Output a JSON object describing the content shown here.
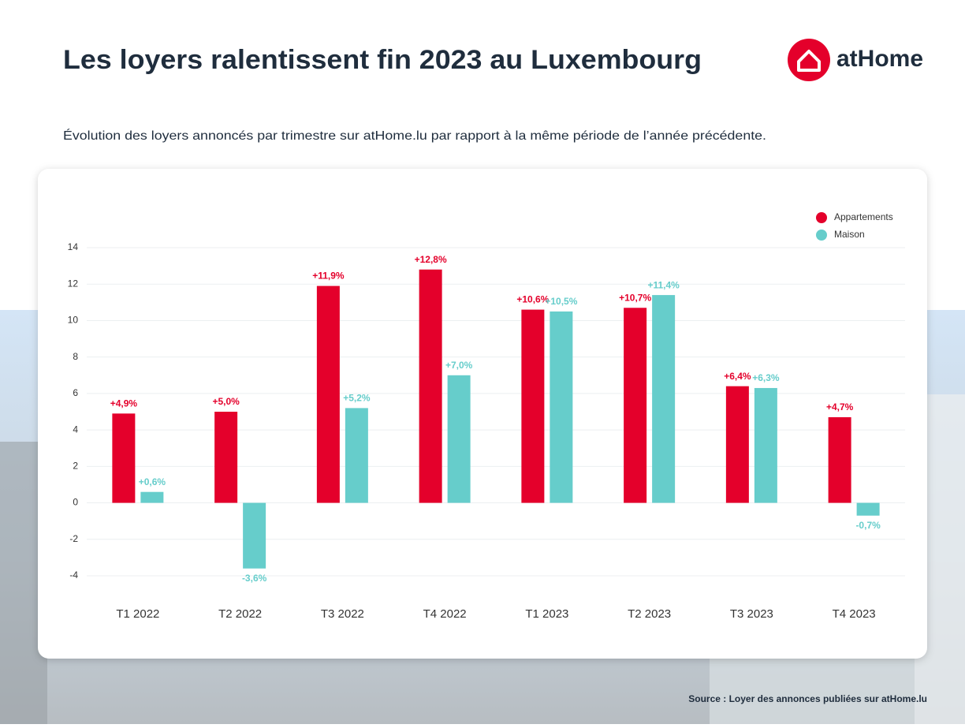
{
  "chart_data": {
    "type": "bar",
    "title": "Les loyers ralentissent fin 2023 au Luxembourg",
    "subtitle": "Évolution des loyers annoncés par trimestre sur atHome.lu par rapport à la même période de l’année précédente.",
    "logo": "atHome",
    "source": "Source : Loyer des annonces publiées sur atHome.lu",
    "categories": [
      "T1 2022",
      "T2 2022",
      "T3 2022",
      "T4 2022",
      "T1 2023",
      "T2 2023",
      "T3 2023",
      "T4 2023"
    ],
    "series": [
      {
        "name": "Appartements",
        "color": "#e4002b",
        "values": [
          4.9,
          5.0,
          11.9,
          12.8,
          10.6,
          10.7,
          6.4,
          4.7
        ],
        "value_labels": [
          "+4,9%",
          "+5,0%",
          "+11,9%",
          "+12,8%",
          "+10,6%",
          "+10,7%",
          "+6,4%",
          "+4,7%"
        ]
      },
      {
        "name": "Maison",
        "color": "#66cdcb",
        "values": [
          0.6,
          -3.6,
          5.2,
          7.0,
          10.5,
          11.4,
          6.3,
          -0.7
        ],
        "value_labels": [
          "+0,6%",
          "-3,6%",
          "+5,2%",
          "+7,0%",
          "+10,5%",
          "+11,4%",
          "+6,3%",
          "-0,7%"
        ]
      }
    ],
    "ylim": [
      -4,
      14
    ],
    "yticks": [
      -4,
      -2,
      0,
      2,
      4,
      6,
      8,
      10,
      12,
      14
    ],
    "grid": true,
    "legend": "top-right"
  }
}
